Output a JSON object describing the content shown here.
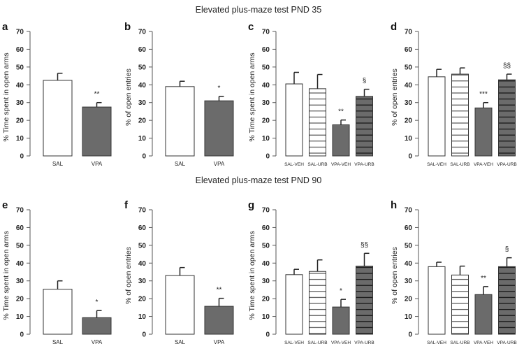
{
  "titles": [
    "Elevated plus-maze test PND 35",
    "Elevated plus-maze test PND 90"
  ],
  "colors": {
    "treated_fill": "#6b6b6b",
    "control_fill": "#ffffff",
    "outline": "#333333",
    "hatch": "#333333"
  },
  "chart_data": [
    {
      "type": "bar",
      "panel": "a",
      "title": "",
      "xlabel": "",
      "ylabel": "% Time spent in open arms",
      "ylim": [
        0,
        70
      ],
      "yticks": [
        0,
        10,
        20,
        30,
        40,
        50,
        60,
        70
      ],
      "categories": [
        "SAL",
        "VPA"
      ],
      "values": [
        42.5,
        27.5
      ],
      "errors": [
        4,
        2.5
      ],
      "significance": [
        "",
        "**"
      ]
    },
    {
      "type": "bar",
      "panel": "b",
      "title": "",
      "xlabel": "",
      "ylabel": "% of open entries",
      "ylim": [
        0,
        70
      ],
      "yticks": [
        0,
        10,
        20,
        30,
        40,
        50,
        60,
        70
      ],
      "categories": [
        "SAL",
        "VPA"
      ],
      "values": [
        39,
        31
      ],
      "errors": [
        3,
        2.5
      ],
      "significance": [
        "",
        "*"
      ]
    },
    {
      "type": "bar",
      "panel": "c",
      "title": "",
      "xlabel": "",
      "ylabel": "% Time spent in open arms",
      "ylim": [
        0,
        70
      ],
      "yticks": [
        0,
        10,
        20,
        30,
        40,
        50,
        60,
        70
      ],
      "categories": [
        "SAL-VEH",
        "SAL-URB",
        "VPA-VEH",
        "VPA-URB"
      ],
      "values": [
        40.5,
        37.8,
        17.5,
        33.5
      ],
      "errors": [
        6.5,
        8,
        2.7,
        4
      ],
      "significance": [
        "",
        "",
        "**",
        "§"
      ]
    },
    {
      "type": "bar",
      "panel": "d",
      "title": "",
      "xlabel": "",
      "ylabel": "% of open entries",
      "ylim": [
        0,
        70
      ],
      "yticks": [
        0,
        10,
        20,
        30,
        40,
        50,
        60,
        70
      ],
      "categories": [
        "SAL-VEH",
        "SAL-URB",
        "VPA-VEH",
        "VPA-URB"
      ],
      "values": [
        44.5,
        46,
        27,
        42.8
      ],
      "errors": [
        4.2,
        3.5,
        3,
        3.2
      ],
      "significance": [
        "",
        "",
        "***",
        "§§"
      ]
    },
    {
      "type": "bar",
      "panel": "e",
      "title": "",
      "xlabel": "",
      "ylabel": "% Time spent in open arms",
      "ylim": [
        0,
        70
      ],
      "yticks": [
        0,
        10,
        20,
        30,
        40,
        50,
        60,
        70
      ],
      "categories": [
        "SAL",
        "VPA"
      ],
      "values": [
        25.3,
        9.3
      ],
      "errors": [
        4.7,
        4
      ],
      "significance": [
        "",
        "*"
      ]
    },
    {
      "type": "bar",
      "panel": "f",
      "title": "",
      "xlabel": "",
      "ylabel": "% of open entries",
      "ylim": [
        0,
        70
      ],
      "yticks": [
        0,
        10,
        20,
        30,
        40,
        50,
        60,
        70
      ],
      "categories": [
        "SAL",
        "VPA"
      ],
      "values": [
        33,
        15.7
      ],
      "errors": [
        4.5,
        4.5
      ],
      "significance": [
        "",
        "**"
      ]
    },
    {
      "type": "bar",
      "panel": "g",
      "title": "",
      "xlabel": "",
      "ylabel": "% Time spent in open arms",
      "ylim": [
        0,
        70
      ],
      "yticks": [
        0,
        10,
        20,
        30,
        40,
        50,
        60,
        70
      ],
      "categories": [
        "SAL-VEH",
        "SAL-URB",
        "VPA-VEH",
        "VPA-URB"
      ],
      "values": [
        33.5,
        35.3,
        15.3,
        38.3
      ],
      "errors": [
        3,
        6.5,
        4.3,
        7.2
      ],
      "significance": [
        "",
        "",
        "*",
        "§§"
      ]
    },
    {
      "type": "bar",
      "panel": "h",
      "title": "",
      "xlabel": "",
      "ylabel": "% of open entries",
      "ylim": [
        0,
        70
      ],
      "yticks": [
        0,
        10,
        20,
        30,
        40,
        50,
        60,
        70
      ],
      "categories": [
        "SAL-VEH",
        "SAL-URB",
        "VPA-VEH",
        "VPA-URB"
      ],
      "values": [
        38,
        33.3,
        22.3,
        38
      ],
      "errors": [
        2.5,
        5,
        4.5,
        5
      ],
      "significance": [
        "",
        "",
        "**",
        "§"
      ]
    }
  ]
}
